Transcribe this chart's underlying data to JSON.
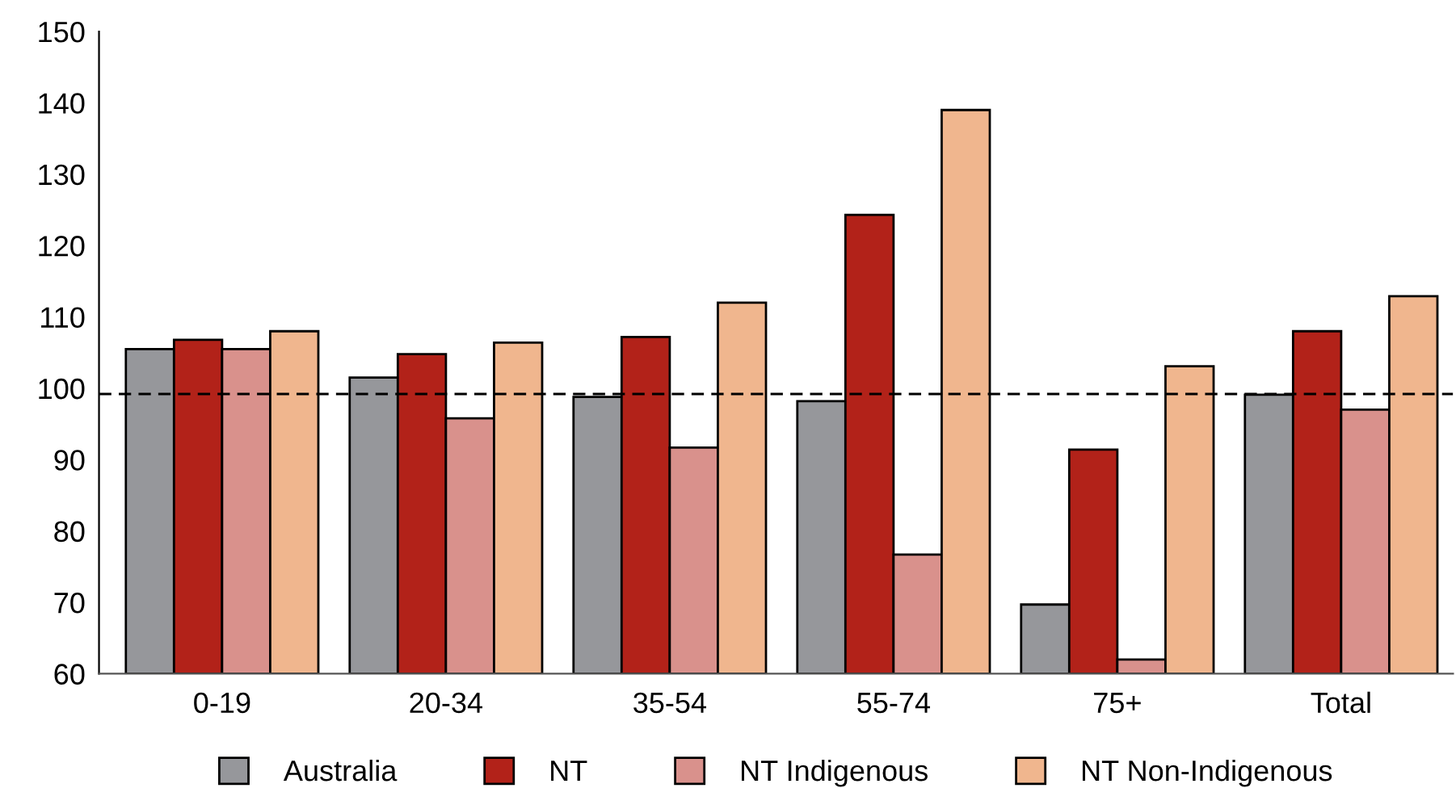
{
  "chart_data": {
    "type": "bar",
    "categories": [
      "0-19",
      "20-34",
      "35-54",
      "55-74",
      "75+",
      "Total"
    ],
    "series": [
      {
        "name": "Australia",
        "color": "#96979b",
        "values": [
          105.5,
          101.5,
          98.8,
          98.2,
          69.7,
          99.1
        ]
      },
      {
        "name": "NT",
        "color": "#b22219",
        "values": [
          106.8,
          104.8,
          107.2,
          124.3,
          91.4,
          108.0
        ]
      },
      {
        "name": "NT Indigenous",
        "color": "#d9918c",
        "values": [
          105.5,
          95.8,
          91.7,
          76.7,
          62.0,
          97.0
        ]
      },
      {
        "name": "NT Non-Indigenous",
        "color": "#f0b68e",
        "values": [
          108.0,
          106.4,
          112.0,
          139.0,
          103.1,
          112.9
        ]
      }
    ],
    "ylim": [
      60,
      150
    ],
    "yticks": [
      60,
      70,
      80,
      90,
      100,
      110,
      120,
      130,
      140,
      150
    ],
    "ref_lines": [
      {
        "axis": "y",
        "value": 99.2,
        "line_style": "dashed",
        "color": "#000000"
      }
    ],
    "grid": false,
    "legend": "bottom"
  }
}
